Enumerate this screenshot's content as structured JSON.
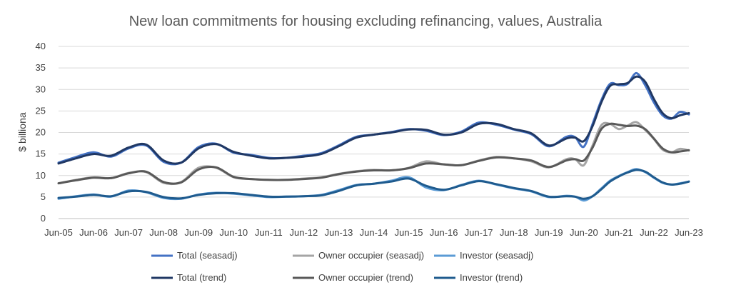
{
  "chart_data": {
    "type": "line",
    "title": "New loan commitments for housing excluding refinancing, values, Australia",
    "xlabel": "",
    "ylabel": "$ billiona",
    "ylim": [
      0,
      40
    ],
    "yticks": [
      0,
      5,
      10,
      15,
      20,
      25,
      30,
      35,
      40
    ],
    "grid": true,
    "legend_position": "bottom",
    "x_ticks": [
      "Jun-05",
      "Jun-06",
      "Jun-07",
      "Jun-08",
      "Jun-09",
      "Jun-10",
      "Jun-11",
      "Jun-12",
      "Jun-13",
      "Jun-14",
      "Jun-15",
      "Jun-16",
      "Jun-17",
      "Jun-18",
      "Jun-19",
      "Jun-20",
      "Jun-21",
      "Jun-22",
      "Jun-23"
    ],
    "x": [
      "Jun-05",
      "Dec-05",
      "Jun-06",
      "Dec-06",
      "Jun-07",
      "Dec-07",
      "Jun-08",
      "Dec-08",
      "Jun-09",
      "Dec-09",
      "Jun-10",
      "Dec-10",
      "Jun-11",
      "Dec-11",
      "Jun-12",
      "Dec-12",
      "Jun-13",
      "Dec-13",
      "Jun-14",
      "Dec-14",
      "Jun-15",
      "Dec-15",
      "Jun-16",
      "Dec-16",
      "Jun-17",
      "Dec-17",
      "Jun-18",
      "Dec-18",
      "Jun-19",
      "Dec-19",
      "Mar-20",
      "Jun-20",
      "Sep-20",
      "Dec-20",
      "Mar-21",
      "Jun-21",
      "Sep-21",
      "Dec-21",
      "Mar-22",
      "Jun-22",
      "Sep-22",
      "Dec-22",
      "Mar-23",
      "Jun-23"
    ],
    "series": [
      {
        "name": "Total (seasadj)",
        "color": "#4472c4",
        "width": 3,
        "values": [
          13.0,
          14.3,
          15.4,
          14.4,
          16.3,
          17.0,
          13.2,
          13.0,
          16.6,
          17.4,
          15.3,
          14.8,
          14.1,
          14.1,
          14.6,
          15.2,
          17.0,
          19.0,
          19.5,
          20.1,
          20.8,
          20.4,
          19.4,
          20.2,
          22.3,
          21.8,
          20.7,
          19.6,
          16.8,
          19.0,
          18.9,
          16.7,
          22.0,
          27.5,
          31.3,
          31.0,
          31.3,
          33.8,
          31.0,
          27.0,
          24.0,
          23.2,
          24.8,
          24.2
        ]
      },
      {
        "name": "Owner occupier (seasadj)",
        "color": "#a5a5a5",
        "width": 3,
        "values": [
          8.2,
          9.0,
          9.6,
          9.4,
          10.6,
          10.8,
          8.3,
          8.5,
          11.8,
          11.8,
          9.6,
          9.2,
          9.0,
          9.0,
          9.3,
          9.6,
          10.4,
          11.0,
          11.3,
          11.2,
          11.8,
          13.3,
          12.6,
          12.4,
          13.5,
          14.3,
          14.0,
          13.3,
          11.9,
          13.8,
          13.8,
          12.4,
          17.0,
          21.7,
          22.0,
          20.8,
          21.6,
          22.4,
          20.6,
          18.5,
          16.0,
          15.4,
          16.2,
          15.8
        ]
      },
      {
        "name": "Investor (seasadj)",
        "color": "#5b9bd5",
        "width": 3,
        "values": [
          4.6,
          5.2,
          5.6,
          5.1,
          6.5,
          6.1,
          4.8,
          4.6,
          5.6,
          6.0,
          5.8,
          5.4,
          5.0,
          5.1,
          5.2,
          5.5,
          6.6,
          7.8,
          8.1,
          8.8,
          9.6,
          7.2,
          6.6,
          7.8,
          8.8,
          7.9,
          7.0,
          6.3,
          5.0,
          5.3,
          5.1,
          4.2,
          5.2,
          7.0,
          8.8,
          9.9,
          10.8,
          11.5,
          10.8,
          9.5,
          8.3,
          7.9,
          8.2,
          8.6
        ]
      },
      {
        "name": "Total (trend)",
        "color": "#203864",
        "width": 3,
        "values": [
          12.8,
          14.0,
          15.0,
          14.6,
          16.5,
          17.2,
          13.5,
          13.0,
          16.3,
          17.3,
          15.5,
          14.6,
          14.0,
          14.1,
          14.4,
          15.0,
          16.8,
          18.8,
          19.5,
          20.0,
          20.7,
          20.6,
          19.5,
          20.0,
          22.0,
          22.0,
          20.8,
          19.8,
          17.0,
          18.6,
          18.8,
          18.0,
          21.5,
          27.0,
          30.8,
          31.2,
          31.5,
          33.0,
          31.8,
          27.8,
          24.5,
          23.3,
          24.0,
          24.5
        ]
      },
      {
        "name": "Owner occupier (trend)",
        "color": "#595959",
        "width": 3,
        "values": [
          8.2,
          8.9,
          9.5,
          9.4,
          10.5,
          10.9,
          8.5,
          8.4,
          11.4,
          11.9,
          9.7,
          9.2,
          9.0,
          9.0,
          9.2,
          9.5,
          10.3,
          10.9,
          11.2,
          11.2,
          11.7,
          12.8,
          12.6,
          12.4,
          13.4,
          14.2,
          14.0,
          13.5,
          12.0,
          13.5,
          13.8,
          13.5,
          16.5,
          20.8,
          22.0,
          21.8,
          21.5,
          21.6,
          20.8,
          18.6,
          16.3,
          15.4,
          15.6,
          15.9
        ]
      },
      {
        "name": "Investor (trend)",
        "color": "#1f5b8e",
        "width": 3,
        "values": [
          4.8,
          5.1,
          5.5,
          5.2,
          6.3,
          6.2,
          5.0,
          4.7,
          5.5,
          5.9,
          5.9,
          5.5,
          5.1,
          5.1,
          5.2,
          5.4,
          6.4,
          7.7,
          8.1,
          8.6,
          9.3,
          7.6,
          6.7,
          7.7,
          8.7,
          8.0,
          7.1,
          6.4,
          5.1,
          5.2,
          5.1,
          4.6,
          5.2,
          6.8,
          8.6,
          9.8,
          10.7,
          11.3,
          10.9,
          9.6,
          8.4,
          7.9,
          8.1,
          8.6
        ]
      }
    ]
  }
}
